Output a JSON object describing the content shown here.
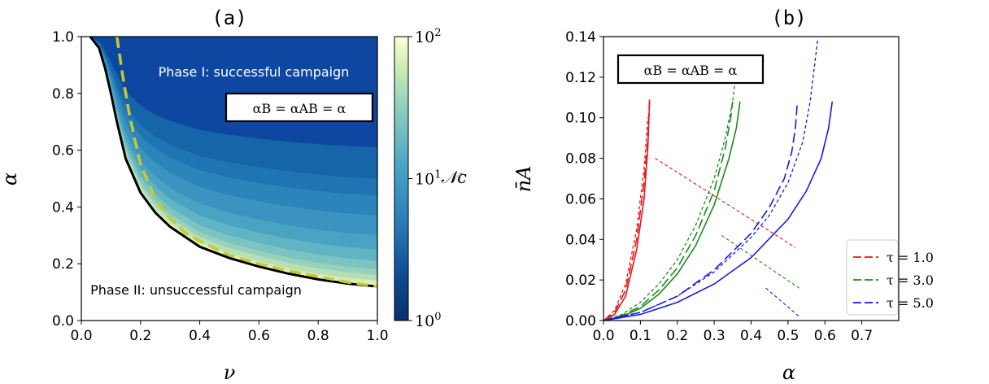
{
  "chart_data": [
    {
      "type": "heatmap",
      "title": "(a)",
      "xlabel": "ν",
      "ylabel": "α",
      "xlim": [
        0,
        1
      ],
      "ylim": [
        0,
        1
      ],
      "xticks": [
        "0.0",
        "0.2",
        "0.4",
        "0.6",
        "0.8",
        "1.0"
      ],
      "yticks": [
        "0.0",
        "0.2",
        "0.4",
        "0.6",
        "0.8",
        "1.0"
      ],
      "colorbar": {
        "label": "𝒩c",
        "scale": "log",
        "range": [
          1,
          100
        ],
        "ticks": [
          {
            "base": "10",
            "exp": "0"
          },
          {
            "base": "10",
            "exp": "1"
          },
          {
            "base": "10",
            "exp": "2"
          }
        ]
      },
      "annotations": {
        "phase1": "Phase I: successful campaign",
        "phase2": "Phase II: unsuccessful campaign",
        "box": "αB = αAB = α"
      },
      "boundary_solid": {
        "color": "#000000",
        "x": [
          0.03,
          0.06,
          0.08,
          0.1,
          0.12,
          0.15,
          0.2,
          0.25,
          0.3,
          0.4,
          0.5,
          0.6,
          0.7,
          0.8,
          0.9,
          1.0
        ],
        "y": [
          1.0,
          0.96,
          0.89,
          0.8,
          0.7,
          0.57,
          0.45,
          0.38,
          0.33,
          0.26,
          0.22,
          0.19,
          0.165,
          0.145,
          0.13,
          0.12
        ]
      },
      "boundary_dashed": {
        "color": "#c8c832",
        "x": [
          0.12,
          0.14,
          0.16,
          0.18,
          0.2,
          0.25,
          0.3,
          0.35,
          0.4,
          0.5,
          0.6,
          0.7,
          0.8,
          0.9,
          1.0
        ],
        "y": [
          1.0,
          0.86,
          0.74,
          0.64,
          0.55,
          0.43,
          0.36,
          0.31,
          0.28,
          0.23,
          0.2,
          0.175,
          0.155,
          0.135,
          0.12
        ]
      },
      "contour_levels_alpha_at_nu1": [
        1.0,
        0.61,
        0.5,
        0.44,
        0.37,
        0.3,
        0.25,
        0.21,
        0.18,
        0.16,
        0.14,
        0.13,
        0.12
      ],
      "colors": [
        "#08306b",
        "#0d47a1",
        "#1565a8",
        "#1f74b4",
        "#2b84ba",
        "#3a93c0",
        "#4ba3c3",
        "#61b4c4",
        "#7cc4c2",
        "#98d1bb",
        "#b6dfb5",
        "#d3edb4",
        "#edf8b8"
      ]
    },
    {
      "type": "line",
      "title": "(b)",
      "xlabel": "α",
      "ylabel": "n̄A",
      "xlim": [
        0,
        0.8
      ],
      "ylim": [
        0,
        0.14
      ],
      "xticks": [
        "0.0",
        "0.1",
        "0.2",
        "0.3",
        "0.4",
        "0.5",
        "0.6",
        "0.7"
      ],
      "yticks": [
        "0.00",
        "0.02",
        "0.04",
        "0.06",
        "0.08",
        "0.10",
        "0.12",
        "0.14"
      ],
      "box": "αB = αAB = α",
      "legend_position": "lower-right",
      "series": [
        {
          "name": "τ = 1.0",
          "color": "#e41a1c",
          "curves": [
            {
              "style": "solid",
              "x": [
                0,
                0.03,
                0.06,
                0.09,
                0.11,
                0.12,
                0.125
              ],
              "y": [
                0,
                0.003,
                0.012,
                0.035,
                0.06,
                0.085,
                0.108
              ]
            },
            {
              "style": "dashed",
              "x": [
                0,
                0.03,
                0.06,
                0.09,
                0.11,
                0.12,
                0.125
              ],
              "y": [
                0,
                0.004,
                0.015,
                0.04,
                0.068,
                0.09,
                0.11
              ]
            },
            {
              "style": "dotted",
              "x": [
                0,
                0.03,
                0.06,
                0.09,
                0.11,
                0.12
              ],
              "y": [
                0,
                0.005,
                0.018,
                0.045,
                0.075,
                0.1
              ]
            }
          ],
          "guide": {
            "x": [
              0.14,
              0.52
            ],
            "y": [
              0.08,
              0.036
            ]
          }
        },
        {
          "name": "τ = 3.0",
          "color": "#1a8c1a",
          "curves": [
            {
              "style": "solid",
              "x": [
                0,
                0.05,
                0.1,
                0.15,
                0.2,
                0.25,
                0.3,
                0.34,
                0.36,
                0.37
              ],
              "y": [
                0,
                0.002,
                0.006,
                0.013,
                0.023,
                0.037,
                0.057,
                0.08,
                0.095,
                0.108
              ]
            },
            {
              "style": "dashed",
              "x": [
                0,
                0.05,
                0.1,
                0.15,
                0.2,
                0.25,
                0.3,
                0.33,
                0.345,
                0.35
              ],
              "y": [
                0,
                0.0025,
                0.007,
                0.015,
                0.026,
                0.042,
                0.064,
                0.085,
                0.1,
                0.108
              ]
            },
            {
              "style": "dotted",
              "x": [
                0,
                0.05,
                0.1,
                0.15,
                0.2,
                0.25,
                0.3,
                0.33,
                0.35,
                0.36
              ],
              "y": [
                0,
                0.003,
                0.009,
                0.018,
                0.03,
                0.047,
                0.07,
                0.09,
                0.108,
                0.124
              ]
            }
          ],
          "guide": {
            "x": [
              0.32,
              0.53
            ],
            "y": [
              0.042,
              0.016
            ]
          }
        },
        {
          "name": "τ = 5.0",
          "color": "#1a1adc",
          "curves": [
            {
              "style": "solid",
              "x": [
                0,
                0.1,
                0.2,
                0.3,
                0.4,
                0.5,
                0.55,
                0.59,
                0.61,
                0.62
              ],
              "y": [
                0,
                0.003,
                0.009,
                0.018,
                0.031,
                0.05,
                0.064,
                0.08,
                0.095,
                0.108
              ]
            },
            {
              "style": "dashed",
              "x": [
                0,
                0.1,
                0.2,
                0.3,
                0.4,
                0.45,
                0.49,
                0.51,
                0.52,
                0.525
              ],
              "y": [
                0,
                0.004,
                0.012,
                0.025,
                0.043,
                0.056,
                0.07,
                0.083,
                0.095,
                0.107
              ]
            },
            {
              "style": "dotted",
              "x": [
                0,
                0.1,
                0.2,
                0.3,
                0.4,
                0.45,
                0.5,
                0.54,
                0.56,
                0.58
              ],
              "y": [
                0,
                0.004,
                0.012,
                0.024,
                0.041,
                0.052,
                0.068,
                0.088,
                0.108,
                0.138
              ]
            }
          ],
          "guide": {
            "x": [
              0.44,
              0.53
            ],
            "y": [
              0.016,
              0.002
            ]
          }
        }
      ]
    }
  ]
}
